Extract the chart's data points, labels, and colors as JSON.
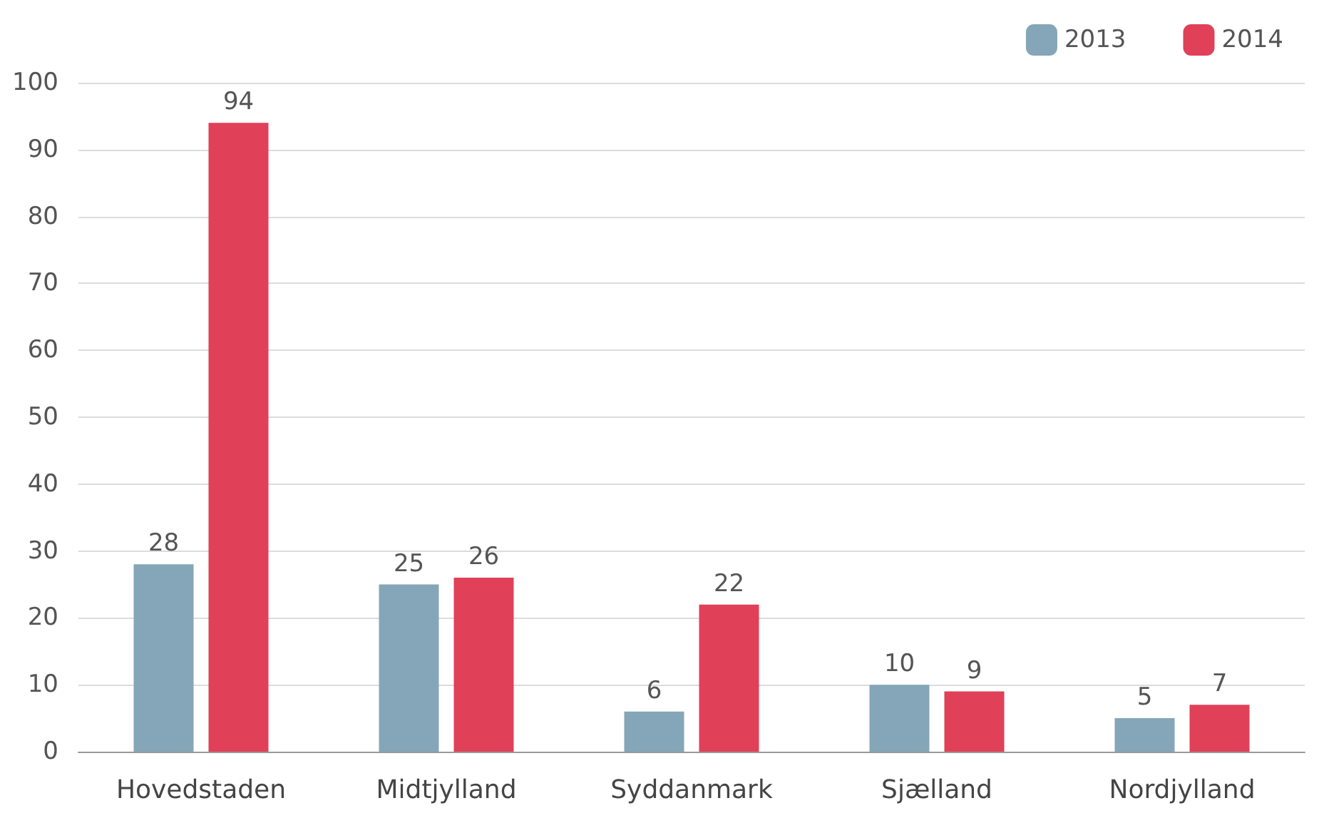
{
  "chart_data": {
    "type": "bar",
    "categories": [
      "Hovedstaden",
      "Midtjylland",
      "Syddanmark",
      "Sjælland",
      "Nordjylland"
    ],
    "series": [
      {
        "name": "2013",
        "color": "#84a6b8",
        "values": [
          28,
          25,
          6,
          10,
          5
        ]
      },
      {
        "name": "2014",
        "color": "#e04058",
        "values": [
          94,
          26,
          22,
          9,
          7
        ]
      }
    ],
    "ylim": [
      0,
      100
    ],
    "yticks": [
      0,
      10,
      20,
      30,
      40,
      50,
      60,
      70,
      80,
      90,
      100
    ],
    "grid": "y",
    "legend": "top right",
    "data_labels": true
  }
}
